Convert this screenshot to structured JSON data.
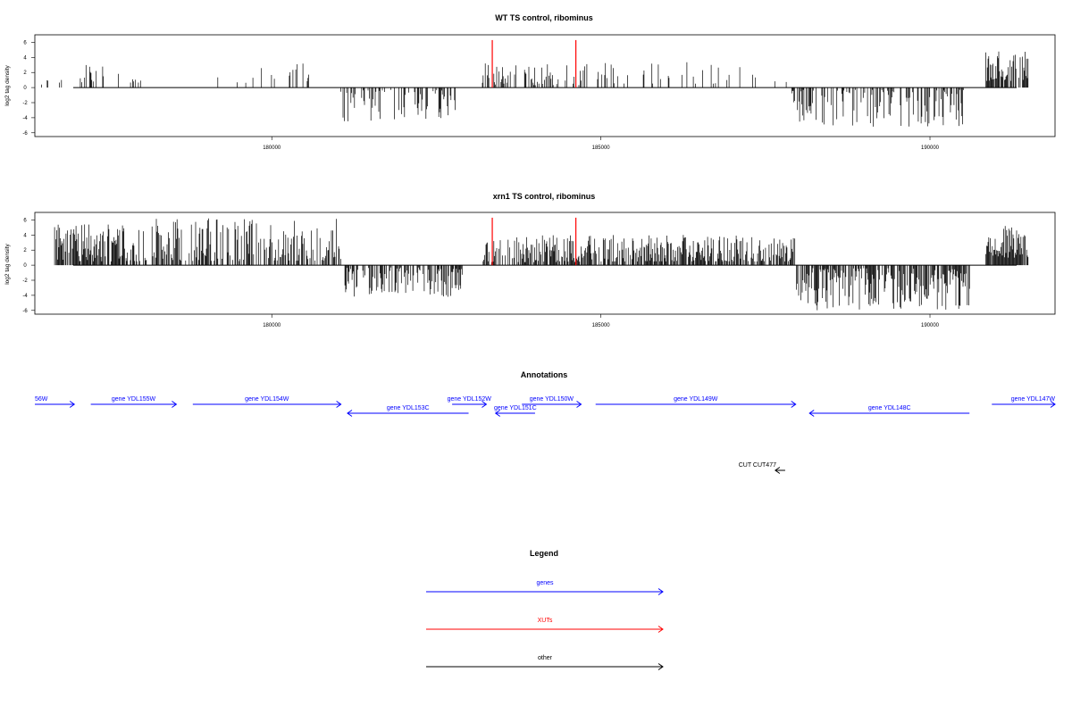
{
  "colors": {
    "gene": "#0000ff",
    "xut": "#ff0000",
    "other": "#000000",
    "marker": "#ff0000"
  },
  "chart_data": [
    {
      "type": "bar",
      "id": "wt",
      "title": "WT TS control, ribominus",
      "ylabel": "log2 tag density",
      "xlim": [
        176400,
        191900
      ],
      "ylim": [
        -6.5,
        7.0
      ],
      "yticks": [
        -6,
        -4,
        -2,
        0,
        2,
        4,
        6
      ],
      "xticks": [
        180000,
        185000,
        190000
      ],
      "grid": false,
      "markers": [
        183350,
        184620
      ],
      "marker_height": 6.3,
      "segments": [
        {
          "from": 176500,
          "to": 177080,
          "density": 0.08,
          "min": 0.4,
          "max": 1.3,
          "sign": 1
        },
        {
          "from": 177080,
          "to": 177300,
          "density": 0.5,
          "min": 0.6,
          "max": 3.8,
          "sign": 1
        },
        {
          "from": 177300,
          "to": 178100,
          "density": 0.12,
          "min": 0.6,
          "max": 3.2,
          "sign": 1
        },
        {
          "from": 178800,
          "to": 179300,
          "density": 0.05,
          "min": 0.6,
          "max": 2.0,
          "sign": 1
        },
        {
          "from": 179300,
          "to": 180700,
          "density": 0.12,
          "min": 0.5,
          "max": 3.3,
          "sign": 1
        },
        {
          "from": 181050,
          "to": 182850,
          "density": 0.45,
          "min": 0.3,
          "max": 4.5,
          "sign": -1
        },
        {
          "from": 183200,
          "to": 184700,
          "density": 0.35,
          "min": 0.3,
          "max": 3.2,
          "sign": 1
        },
        {
          "from": 184700,
          "to": 187850,
          "density": 0.1,
          "min": 0.5,
          "max": 3.4,
          "sign": 1
        },
        {
          "from": 187900,
          "to": 190550,
          "density": 0.45,
          "min": 0.3,
          "max": 5.2,
          "sign": -1
        },
        {
          "from": 190850,
          "to": 191500,
          "density": 0.75,
          "min": 0.8,
          "max": 5.0,
          "sign": 1
        }
      ]
    },
    {
      "type": "bar",
      "id": "xrn1",
      "title": "xrn1 TS control, ribominus",
      "ylabel": "log2 tag density",
      "xlim": [
        176400,
        191900
      ],
      "ylim": [
        -6.5,
        7.0
      ],
      "yticks": [
        -6,
        -4,
        -2,
        0,
        2,
        4,
        6
      ],
      "xticks": [
        180000,
        185000,
        190000
      ],
      "grid": false,
      "markers": [
        183350,
        184620
      ],
      "marker_height": 6.3,
      "segments": [
        {
          "from": 176700,
          "to": 178000,
          "density": 0.8,
          "min": 0.5,
          "max": 5.5,
          "sign": 1
        },
        {
          "from": 178050,
          "to": 181050,
          "density": 0.6,
          "min": 0.5,
          "max": 6.2,
          "sign": 1
        },
        {
          "from": 181100,
          "to": 182900,
          "density": 0.55,
          "min": 0.3,
          "max": 4.2,
          "sign": -1
        },
        {
          "from": 183200,
          "to": 184700,
          "density": 0.6,
          "min": 0.4,
          "max": 4.0,
          "sign": 1
        },
        {
          "from": 184700,
          "to": 187950,
          "density": 0.7,
          "min": 0.5,
          "max": 4.0,
          "sign": 1
        },
        {
          "from": 187950,
          "to": 190600,
          "density": 0.7,
          "min": 0.4,
          "max": 6.0,
          "sign": -1
        },
        {
          "from": 190850,
          "to": 191500,
          "density": 0.95,
          "min": 1.0,
          "max": 5.7,
          "sign": 1
        }
      ]
    }
  ],
  "annotations": {
    "title": "Annotations",
    "xlim": [
      176400,
      191900
    ],
    "features": [
      {
        "label": "56W",
        "start": 176400,
        "end": 177000,
        "strand": "+",
        "row": 0,
        "type": "gene"
      },
      {
        "label": "gene YDL155W",
        "start": 177250,
        "end": 178550,
        "strand": "+",
        "row": 0,
        "type": "gene"
      },
      {
        "label": "gene YDL154W",
        "start": 178800,
        "end": 181050,
        "strand": "+",
        "row": 0,
        "type": "gene"
      },
      {
        "label": "gene YDL153C",
        "start": 181150,
        "end": 182990,
        "strand": "-",
        "row": 1,
        "type": "gene"
      },
      {
        "label": "gene YDL152W",
        "start": 182740,
        "end": 183260,
        "strand": "+",
        "row": 0,
        "type": "gene"
      },
      {
        "label": "gene YDL151C",
        "start": 183400,
        "end": 184000,
        "strand": "-",
        "row": 1,
        "type": "gene"
      },
      {
        "label": "gene YDL150W",
        "start": 183800,
        "end": 184700,
        "strand": "+",
        "row": 0,
        "type": "gene"
      },
      {
        "label": "gene YDL149W",
        "start": 184920,
        "end": 187960,
        "strand": "+",
        "row": 0,
        "type": "gene"
      },
      {
        "label": "gene YDL148C",
        "start": 188170,
        "end": 190600,
        "strand": "-",
        "row": 1,
        "type": "gene"
      },
      {
        "label": "gene YDL147W",
        "start": 190940,
        "end": 191900,
        "strand": "+",
        "row": 0,
        "type": "gene"
      },
      {
        "label": "CUT CUT477",
        "start": 187650,
        "end": 187800,
        "strand": "-",
        "row": 3,
        "type": "other"
      }
    ]
  },
  "legend": {
    "title": "Legend",
    "items": [
      {
        "label": "genes",
        "type": "gene"
      },
      {
        "label": "XUTs",
        "type": "xut"
      },
      {
        "label": "other",
        "type": "other"
      }
    ]
  }
}
